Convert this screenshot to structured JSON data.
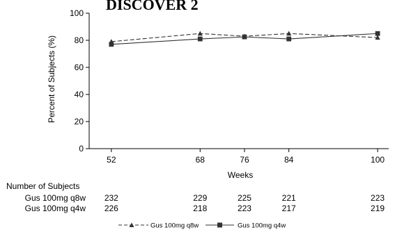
{
  "chart_data": {
    "type": "line",
    "title": "DISCOVER 2",
    "xlabel": "Weeks",
    "ylabel": "Percent of Subjects (%)",
    "x": [
      52,
      68,
      76,
      84,
      100
    ],
    "xlim": [
      48,
      102
    ],
    "ylim": [
      0,
      100
    ],
    "yticks": [
      0,
      20,
      40,
      60,
      80,
      100
    ],
    "grid": false,
    "legend_position": "bottom",
    "series": [
      {
        "name": "Gus 100mg q8w",
        "values": [
          79,
          85,
          83,
          85,
          82
        ],
        "line_style": "dashed",
        "marker": "triangle",
        "color": "#333333"
      },
      {
        "name": "Gus 100mg q4w",
        "values": [
          77,
          81,
          82.5,
          81,
          85
        ],
        "line_style": "solid",
        "marker": "square",
        "color": "#333333"
      }
    ]
  },
  "subjects_table": {
    "title": "Number of Subjects",
    "rows": [
      {
        "label": "Gus 100mg q8w",
        "counts": [
          "232",
          "229",
          "225",
          "221",
          "223"
        ]
      },
      {
        "label": "Gus 100mg q4w",
        "counts": [
          "226",
          "218",
          "223",
          "217",
          "219"
        ]
      }
    ]
  }
}
